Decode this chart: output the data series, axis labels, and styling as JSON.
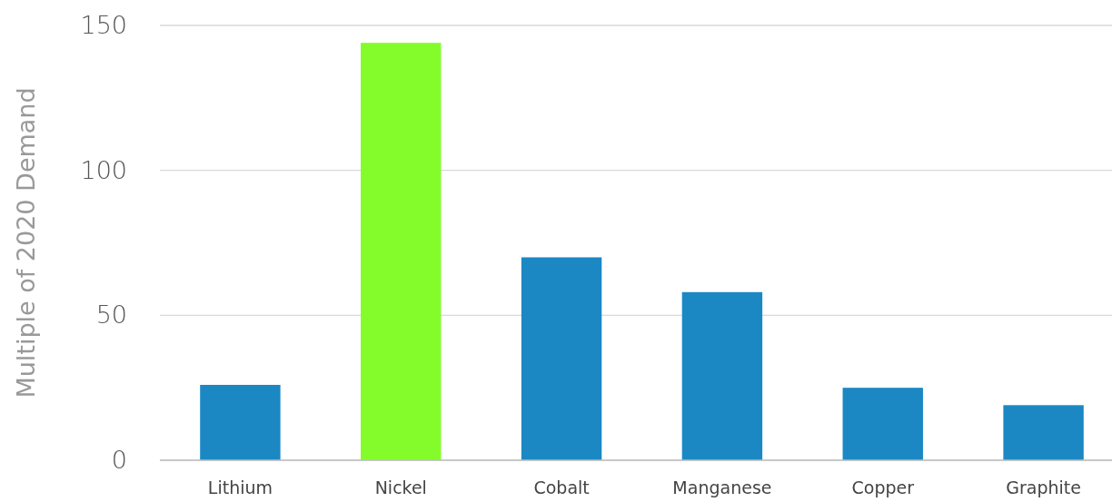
{
  "chart_data": {
    "type": "bar",
    "ylabel": "Multiple of 2020 Demand",
    "categories": [
      "Lithium",
      "Nickel",
      "Cobalt",
      "Manganese",
      "Copper",
      "Graphite"
    ],
    "values": [
      26,
      144,
      70,
      58,
      25,
      19
    ],
    "colors": [
      "#1b88c4",
      "#84fc2c",
      "#1b88c4",
      "#1b88c4",
      "#1b88c4",
      "#1b88c4"
    ],
    "ylim": [
      0,
      150
    ],
    "yticks": [
      0,
      50,
      100,
      150
    ],
    "grid": "y"
  }
}
